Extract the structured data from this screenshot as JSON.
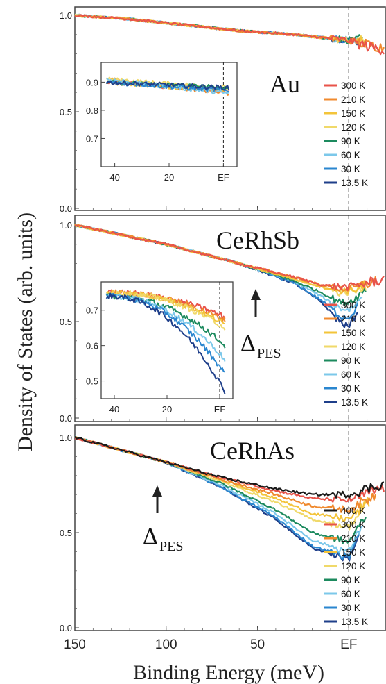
{
  "figure": {
    "ylabel": "Density of States (arb. units)",
    "xlabel": "Binding Energy (meV)"
  },
  "chart_data": [
    {
      "type": "line",
      "panel": "Au",
      "sample_label": "Au",
      "xlim": [
        150,
        -20
      ],
      "ylim": [
        0.0,
        1.0
      ],
      "xticks": [],
      "yticks": [
        "0.0",
        "0.5",
        "1.0"
      ],
      "fermi_line_x": 0,
      "series": [
        {
          "name": "300 K",
          "color": "#e8534a",
          "x": [
            150,
            120,
            90,
            60,
            30,
            10,
            0,
            -10,
            -20
          ],
          "y": [
            1.0,
            0.98,
            0.95,
            0.92,
            0.9,
            0.88,
            0.87,
            0.84,
            0.82
          ]
        },
        {
          "name": "210 K",
          "color": "#f08a2e",
          "x": [
            150,
            120,
            90,
            60,
            30,
            10,
            0,
            -10,
            -20
          ],
          "y": [
            1.0,
            0.98,
            0.95,
            0.92,
            0.9,
            0.88,
            0.87,
            0.85,
            0.83
          ]
        },
        {
          "name": "150 K",
          "color": "#f3c43a",
          "x": [
            150,
            120,
            90,
            60,
            30,
            10,
            0,
            -10
          ],
          "y": [
            1.0,
            0.98,
            0.95,
            0.92,
            0.9,
            0.88,
            0.87,
            0.86
          ]
        },
        {
          "name": "120 K",
          "color": "#f0d96a",
          "x": [
            150,
            120,
            90,
            60,
            30,
            10,
            0,
            -10
          ],
          "y": [
            1.0,
            0.98,
            0.95,
            0.92,
            0.9,
            0.88,
            0.87,
            0.87
          ]
        },
        {
          "name": "90 K",
          "color": "#1c8a5e",
          "x": [
            150,
            120,
            90,
            60,
            30,
            10,
            0,
            -8
          ],
          "y": [
            1.0,
            0.98,
            0.95,
            0.92,
            0.9,
            0.88,
            0.87,
            0.88
          ]
        },
        {
          "name": "60 K",
          "color": "#7cc8ea",
          "x": [
            150,
            120,
            90,
            60,
            30,
            10,
            0,
            -5
          ],
          "y": [
            1.0,
            0.98,
            0.95,
            0.92,
            0.9,
            0.88,
            0.87,
            0.87
          ]
        },
        {
          "name": "30 K",
          "color": "#2a86cf",
          "x": [
            150,
            120,
            90,
            60,
            30,
            10,
            0,
            -5
          ],
          "y": [
            1.0,
            0.98,
            0.95,
            0.92,
            0.9,
            0.88,
            0.87,
            0.86
          ]
        },
        {
          "name": "13.5 K",
          "color": "#1f3f8a",
          "x": [
            150,
            120,
            90,
            60,
            30,
            10,
            0,
            -5
          ],
          "y": [
            1.0,
            0.98,
            0.95,
            0.92,
            0.9,
            0.88,
            0.87,
            0.86
          ]
        }
      ],
      "inset": {
        "xlim": [
          45,
          -5
        ],
        "ylim": [
          0.6,
          0.97
        ],
        "xticks": [
          "40",
          "20",
          "EF"
        ],
        "yticks": [
          "0.7",
          "0.8",
          "0.9"
        ],
        "series_y_start": [
          0.9,
          0.91,
          0.9,
          0.91,
          0.9,
          0.91,
          0.9,
          0.9
        ],
        "series_y_end": [
          0.87,
          0.86,
          0.87,
          0.88,
          0.88,
          0.86,
          0.87,
          0.88
        ]
      }
    },
    {
      "type": "line",
      "panel": "CeRhSb",
      "sample_label": "CeRhSb",
      "xlim": [
        150,
        -20
      ],
      "ylim": [
        0.0,
        1.0
      ],
      "xticks": [],
      "yticks": [
        "0.0",
        "0.5",
        "1.0"
      ],
      "fermi_line_x": 0,
      "annotation": {
        "symbol": "Δ",
        "subscript": "PES",
        "x": 30
      },
      "series": [
        {
          "name": "300 K",
          "color": "#e8534a",
          "x": [
            150,
            100,
            60,
            30,
            15,
            5,
            0,
            -5,
            -20
          ],
          "y": [
            1.0,
            0.9,
            0.8,
            0.73,
            0.69,
            0.68,
            0.68,
            0.69,
            0.72
          ]
        },
        {
          "name": "210 K",
          "color": "#f08a2e",
          "x": [
            150,
            100,
            60,
            30,
            15,
            5,
            0,
            -5,
            -15
          ],
          "y": [
            1.0,
            0.9,
            0.8,
            0.73,
            0.69,
            0.67,
            0.67,
            0.68,
            0.71
          ]
        },
        {
          "name": "150 K",
          "color": "#f3c43a",
          "x": [
            150,
            100,
            60,
            30,
            15,
            5,
            0,
            -5,
            -12
          ],
          "y": [
            1.0,
            0.9,
            0.8,
            0.72,
            0.68,
            0.66,
            0.66,
            0.67,
            0.7
          ]
        },
        {
          "name": "120 K",
          "color": "#f0d96a",
          "x": [
            150,
            100,
            60,
            30,
            15,
            5,
            0,
            -5,
            -10
          ],
          "y": [
            1.0,
            0.9,
            0.8,
            0.72,
            0.68,
            0.65,
            0.65,
            0.66,
            0.69
          ]
        },
        {
          "name": "90 K",
          "color": "#1c8a5e",
          "x": [
            150,
            100,
            60,
            30,
            15,
            5,
            0,
            -5,
            -10
          ],
          "y": [
            1.0,
            0.9,
            0.8,
            0.71,
            0.65,
            0.6,
            0.6,
            0.63,
            0.68
          ]
        },
        {
          "name": "60 K",
          "color": "#7cc8ea",
          "x": [
            150,
            100,
            60,
            30,
            15,
            5,
            0,
            -5,
            -8
          ],
          "y": [
            1.0,
            0.9,
            0.8,
            0.71,
            0.63,
            0.57,
            0.56,
            0.6,
            0.65
          ]
        },
        {
          "name": "30 K",
          "color": "#2a86cf",
          "x": [
            150,
            100,
            60,
            30,
            15,
            5,
            0,
            -5
          ],
          "y": [
            1.0,
            0.9,
            0.8,
            0.7,
            0.61,
            0.53,
            0.52,
            0.58
          ]
        },
        {
          "name": "13.5 K",
          "color": "#1f3f8a",
          "x": [
            150,
            100,
            60,
            30,
            15,
            5,
            0,
            -5
          ],
          "y": [
            1.0,
            0.9,
            0.8,
            0.7,
            0.6,
            0.5,
            0.47,
            0.56
          ]
        }
      ],
      "inset": {
        "xlim": [
          45,
          -5
        ],
        "ylim": [
          0.45,
          0.78
        ],
        "xticks": [
          "40",
          "20",
          "EF"
        ],
        "yticks": [
          "0.5",
          "0.6",
          "0.7"
        ],
        "series_y_start": [
          0.75,
          0.75,
          0.75,
          0.75,
          0.74,
          0.74,
          0.74,
          0.74
        ],
        "series_y_end": [
          0.68,
          0.67,
          0.66,
          0.65,
          0.6,
          0.56,
          0.52,
          0.47
        ]
      }
    },
    {
      "type": "line",
      "panel": "CeRhAs",
      "sample_label": "CeRhAs",
      "xlim": [
        150,
        -20
      ],
      "ylim": [
        0.0,
        1.0
      ],
      "xticks": [
        "150",
        "100",
        "50",
        "EF"
      ],
      "yticks": [
        "0.0",
        "0.5",
        "1.0"
      ],
      "fermi_line_x": 0,
      "annotation": {
        "symbol": "Δ",
        "subscript": "PES",
        "x": 95
      },
      "series": [
        {
          "name": "400 K",
          "color": "#1a1a1a",
          "x": [
            150,
            100,
            70,
            40,
            20,
            0,
            -20
          ],
          "y": [
            1.0,
            0.87,
            0.79,
            0.73,
            0.7,
            0.7,
            0.76
          ]
        },
        {
          "name": "300 K",
          "color": "#e8534a",
          "x": [
            150,
            100,
            70,
            40,
            20,
            0,
            -20
          ],
          "y": [
            1.0,
            0.87,
            0.79,
            0.72,
            0.68,
            0.67,
            0.74
          ]
        },
        {
          "name": "210 K",
          "color": "#f08a2e",
          "x": [
            150,
            100,
            70,
            40,
            20,
            0,
            -15
          ],
          "y": [
            1.0,
            0.87,
            0.78,
            0.7,
            0.64,
            0.62,
            0.7
          ]
        },
        {
          "name": "150 K",
          "color": "#f3c43a",
          "x": [
            150,
            100,
            70,
            40,
            20,
            0,
            -12
          ],
          "y": [
            1.0,
            0.87,
            0.78,
            0.68,
            0.6,
            0.57,
            0.67
          ]
        },
        {
          "name": "120 K",
          "color": "#f0d96a",
          "x": [
            150,
            100,
            70,
            40,
            20,
            0,
            -10
          ],
          "y": [
            1.0,
            0.87,
            0.77,
            0.66,
            0.57,
            0.53,
            0.65
          ]
        },
        {
          "name": "90 K",
          "color": "#1c8a5e",
          "x": [
            150,
            100,
            70,
            40,
            20,
            0,
            -10
          ],
          "y": [
            1.0,
            0.87,
            0.76,
            0.62,
            0.5,
            0.45,
            0.6
          ]
        },
        {
          "name": "60 K",
          "color": "#7cc8ea",
          "x": [
            150,
            100,
            70,
            40,
            20,
            0,
            -8
          ],
          "y": [
            1.0,
            0.87,
            0.75,
            0.6,
            0.46,
            0.4,
            0.56
          ]
        },
        {
          "name": "30 K",
          "color": "#2a86cf",
          "x": [
            150,
            100,
            70,
            40,
            20,
            0,
            -6
          ],
          "y": [
            1.0,
            0.87,
            0.74,
            0.58,
            0.43,
            0.37,
            0.52
          ]
        },
        {
          "name": "13.5 K",
          "color": "#1f3f8a",
          "x": [
            150,
            100,
            70,
            40,
            20,
            0,
            -6
          ],
          "y": [
            1.0,
            0.87,
            0.74,
            0.57,
            0.42,
            0.36,
            0.5
          ]
        }
      ]
    }
  ]
}
